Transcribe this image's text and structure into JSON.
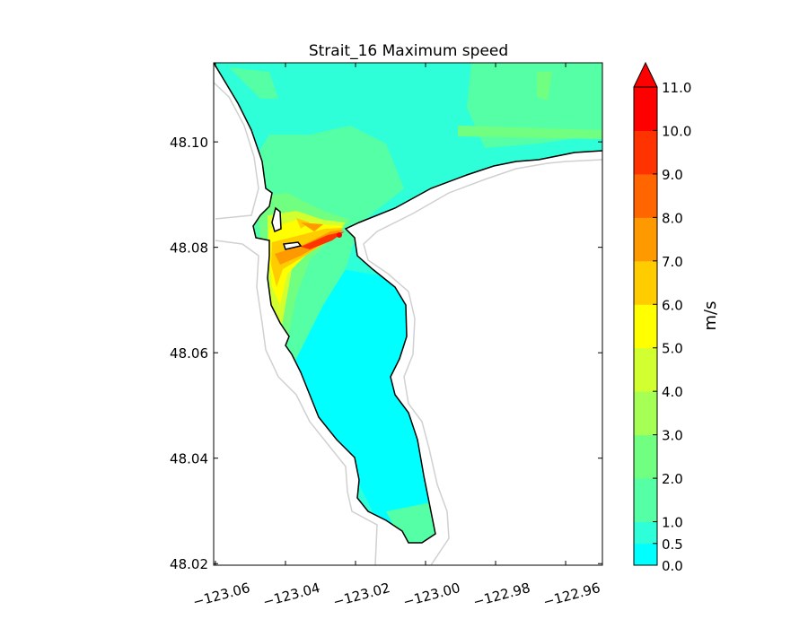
{
  "chart_data": {
    "type": "heatmap",
    "title": "Strait_16 Maximum speed",
    "xlabel": "",
    "ylabel": "",
    "xlim": [
      -123.0605,
      -122.9495
    ],
    "ylim": [
      48.0197,
      48.115
    ],
    "x_ticks": [
      -123.06,
      -123.04,
      -123.02,
      -123.0,
      -122.98,
      -122.96
    ],
    "x_tick_labels": [
      "−123.06",
      "−123.04",
      "−123.02",
      "−123.00",
      "−122.98",
      "−122.96"
    ],
    "y_ticks": [
      48.02,
      48.04,
      48.06,
      48.08,
      48.1
    ],
    "y_tick_labels": [
      "48.02",
      "48.04",
      "48.06",
      "48.08",
      "48.10"
    ],
    "colorbar": {
      "label": "m/s",
      "levels": [
        0.0,
        0.5,
        1.0,
        2.0,
        3.0,
        4.0,
        5.0,
        6.0,
        7.0,
        8.0,
        9.0,
        10.0,
        11.0
      ],
      "tick_labels": [
        "0.0",
        "0.5",
        "1.0",
        "2.0",
        "3.0",
        "4.0",
        "5.0",
        "6.0",
        "7.0",
        "8.0",
        "9.0",
        "10.0",
        "11.0"
      ],
      "colors": [
        "#00ffff",
        "#2effd9",
        "#55ffa6",
        "#70ff80",
        "#a6ff55",
        "#d2ff30",
        "#ffff00",
        "#ffcc00",
        "#ff9900",
        "#ff6600",
        "#ff3300",
        "#ff0000"
      ],
      "extend": "max"
    }
  }
}
